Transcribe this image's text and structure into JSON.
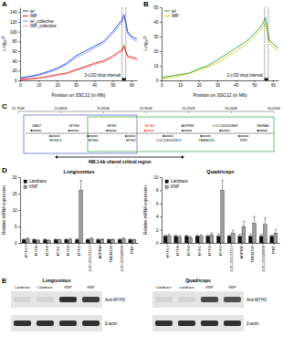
{
  "chart_data": [
    {
      "panel": "A",
      "type": "line",
      "x_label": "Position on SSC12 (in Mb)",
      "y_label": "-Log₁₀P",
      "x": [
        0,
        5,
        10,
        15,
        20,
        25,
        30,
        35,
        40,
        45,
        50,
        53,
        55,
        56,
        57,
        58,
        60,
        63
      ],
      "xlim": [
        0,
        63
      ],
      "xticks": [
        0,
        10,
        20,
        30,
        40,
        50,
        60
      ],
      "ylim": [
        0,
        150
      ],
      "yticks": [
        0,
        20,
        40,
        60,
        80,
        100,
        120,
        140
      ],
      "legend": "top-left",
      "series": [
        {
          "name": "w²",
          "color": "#1a3ccf",
          "values": [
            5,
            8,
            12,
            18,
            25,
            35,
            50,
            60,
            70,
            80,
            100,
            115,
            125,
            135,
            120,
            100,
            90,
            85
          ]
        },
        {
          "name": "IMF",
          "color": "#e0201b",
          "values": [
            2,
            3,
            5,
            8,
            12,
            15,
            22,
            28,
            35,
            40,
            50,
            58,
            62,
            72,
            60,
            50,
            48,
            45
          ]
        },
        {
          "name": "w²_collective",
          "color": "#7fa0ff",
          "values": [
            4,
            7,
            10,
            16,
            22,
            32,
            46,
            55,
            66,
            76,
            95,
            110,
            120,
            128,
            114,
            96,
            86,
            80
          ]
        },
        {
          "name": "IMF_collective",
          "color": "#ff9999",
          "values": [
            1,
            2,
            4,
            7,
            10,
            13,
            20,
            26,
            32,
            38,
            47,
            55,
            59,
            68,
            57,
            47,
            45,
            42
          ]
        }
      ],
      "annotations": [
        {
          "text": "3-LOD drop interval",
          "x0": 55,
          "x1": 57
        }
      ]
    },
    {
      "panel": "B",
      "type": "line",
      "x_label": "Position on SSC12 (in Mb)",
      "y_label": "-Log₁₀P",
      "x": [
        0,
        5,
        10,
        15,
        20,
        25,
        30,
        35,
        40,
        45,
        50,
        53,
        55,
        56,
        57,
        58,
        60,
        63
      ],
      "xlim": [
        0,
        63
      ],
      "xticks": [
        0,
        10,
        20,
        30,
        40,
        50,
        60
      ],
      "ylim": [
        0,
        50
      ],
      "yticks": [
        0,
        10,
        20,
        30,
        40,
        50
      ],
      "legend": "top-left",
      "series": [
        {
          "name": "w²",
          "color": "#2e9e3e",
          "values": [
            2,
            3,
            4,
            5,
            8,
            10,
            14,
            18,
            22,
            26,
            32,
            36,
            40,
            43,
            36,
            28,
            25,
            22
          ]
        },
        {
          "name": "IMF",
          "color": "#d8cc20",
          "values": [
            1,
            2,
            3,
            5,
            7,
            9,
            12,
            16,
            20,
            24,
            30,
            34,
            37,
            39,
            33,
            26,
            23,
            20
          ]
        }
      ],
      "annotations": [
        {
          "text": "2-LOD drop interval",
          "x0": 55.5,
          "x1": 57.5
        }
      ]
    },
    {
      "panel": "D",
      "type": "bar",
      "title": "Longissimus",
      "y_label": "Relative mRNA expression",
      "categories": [
        "MYH13",
        "MYH8",
        "MYH4",
        "MYH1",
        "MYH2",
        "MYH3",
        "LOC100153313",
        "ADPRM",
        "TMEM220",
        "LOC100520868",
        "PIRT"
      ],
      "ylim": [
        0,
        20
      ],
      "yticks": [
        0,
        5,
        10,
        15,
        20
      ],
      "legend": "top-left",
      "series": [
        {
          "name": "Landrace",
          "color": "#111111",
          "values": [
            1,
            1,
            1,
            1,
            1,
            1,
            1,
            1,
            1,
            1,
            1
          ],
          "errors": [
            0.2,
            0.2,
            0.2,
            0.2,
            0.2,
            0.3,
            0.2,
            0.2,
            0.2,
            0.2,
            0.2
          ]
        },
        {
          "name": "KNP",
          "color": "#9e9e9e",
          "values": [
            1.2,
            0.8,
            0.7,
            0.9,
            1.1,
            16,
            1.3,
            1.1,
            1.0,
            1.2,
            0.9
          ],
          "errors": [
            0.3,
            0.2,
            0.2,
            0.2,
            0.3,
            3,
            0.3,
            0.2,
            0.2,
            0.3,
            0.2
          ]
        }
      ]
    },
    {
      "type": "bar",
      "title": "Quadriceps",
      "y_label": "Relative mRNA expression",
      "categories": [
        "MYH13",
        "MYH8",
        "MYH4",
        "MYH1",
        "MYH2",
        "MYH3",
        "LOC100153313",
        "ADPRM",
        "TMEM220",
        "LOC100520868",
        "PIRT"
      ],
      "ylim": [
        0,
        10
      ],
      "yticks": [
        0,
        2,
        4,
        6,
        8,
        10
      ],
      "legend": "top-left",
      "series": [
        {
          "name": "Landrace",
          "color": "#111111",
          "values": [
            1,
            1,
            1,
            1,
            1,
            1,
            1,
            1,
            1,
            1,
            1
          ],
          "errors": [
            0.2,
            0.2,
            0.2,
            0.2,
            0.2,
            0.3,
            0.2,
            0.3,
            0.3,
            0.3,
            0.2
          ]
        },
        {
          "name": "KNP",
          "color": "#9e9e9e",
          "values": [
            1.1,
            0.9,
            0.8,
            1.0,
            1.2,
            8,
            1.5,
            2.5,
            3,
            2.8,
            1.5
          ],
          "errors": [
            0.2,
            0.2,
            0.2,
            0.2,
            0.3,
            1.5,
            0.4,
            0.8,
            1.0,
            1.0,
            0.5
          ]
        }
      ]
    }
  ],
  "diagram": {
    "panel": "C",
    "ruler": [
      "55,750K",
      "55,800K",
      "55,850K",
      "55,900K",
      "55,950K",
      "56,000K",
      "56,050K"
    ],
    "genes": [
      {
        "label": "GAS7",
        "color": "#000000"
      },
      {
        "label": "MYH13",
        "color": "#000000"
      },
      {
        "label": "MYH8",
        "color": "#000000"
      },
      {
        "label": "MYH4",
        "color": "#000000"
      },
      {
        "label": "MYH1",
        "color": "#000000"
      },
      {
        "label": "MYH2",
        "color": "#000000"
      },
      {
        "label": "MYH3",
        "color": "#e02020"
      },
      {
        "label": "LOC100153313",
        "color": "#000000"
      },
      {
        "label": "ADPRM",
        "color": "#000000"
      },
      {
        "label": "TMEM220",
        "color": "#000000"
      },
      {
        "label": "LOC100520868",
        "color": "#000000"
      },
      {
        "label": "PIRT",
        "color": "#000000"
      },
      {
        "label": "SHISA6",
        "color": "#000000"
      }
    ],
    "region": "488.1-kb shared critical region"
  },
  "blot": {
    "panel": "E",
    "groups": [
      {
        "title": "Longissimus",
        "lanes": [
          "Landrace",
          "Landrace",
          "KNP",
          "KNP"
        ],
        "rows": [
          {
            "label": "Anti-MYH3",
            "bands": [
              0.08,
              0.08,
              0.85,
              0.8
            ]
          },
          {
            "label": "β-actin",
            "bands": [
              0.85,
              0.85,
              0.85,
              0.85
            ]
          }
        ]
      },
      {
        "title": "Quadriceps",
        "lanes": [
          "Landrace",
          "Landrace",
          "KNP",
          "KNP"
        ],
        "rows": [
          {
            "label": "Anti-MYH3",
            "bands": [
              0.08,
              0.08,
              0.75,
              0.7
            ]
          },
          {
            "label": "β-actin",
            "bands": [
              0.85,
              0.85,
              0.85,
              0.85
            ]
          }
        ]
      }
    ]
  }
}
